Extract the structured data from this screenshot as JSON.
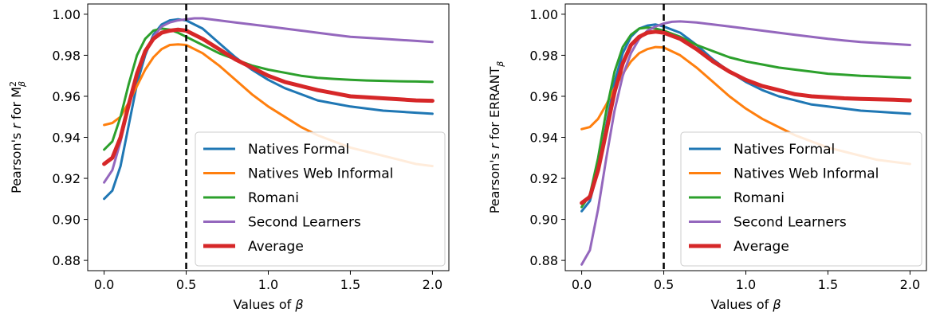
{
  "colors": {
    "natives_formal": "#1f77b4",
    "natives_web_informal": "#ff7f0e",
    "romani": "#2ca02c",
    "second_learners": "#9467bd",
    "average": "#d62728"
  },
  "chart_data": [
    {
      "type": "line",
      "xlabel": "Values of β",
      "ylabel": "Pearson's r for M²β",
      "ylabel_parts": {
        "prefix": "Pearson's ",
        "r": "r",
        "mid": " for M",
        "sup": "2",
        "sub": "β"
      },
      "xlim": [
        -0.1,
        2.1
      ],
      "ylim": [
        0.875,
        1.005
      ],
      "xticks": [
        0.0,
        0.5,
        1.0,
        1.5,
        2.0
      ],
      "xtick_labels": [
        "0.0",
        "0.5",
        "1.0",
        "1.5",
        "2.0"
      ],
      "yticks": [
        0.88,
        0.9,
        0.92,
        0.94,
        0.96,
        0.98,
        1.0
      ],
      "ytick_labels": [
        "0.88",
        "0.90",
        "0.92",
        "0.94",
        "0.96",
        "0.98",
        "1.00"
      ],
      "vline": {
        "x": 0.5,
        "style": "dashed"
      },
      "legend": "lower-right",
      "series": [
        {
          "name": "Natives Formal",
          "color_key": "natives_formal",
          "x": [
            0,
            0.05,
            0.1,
            0.15,
            0.2,
            0.25,
            0.3,
            0.35,
            0.4,
            0.45,
            0.5,
            0.6,
            0.7,
            0.8,
            0.9,
            1.0,
            1.1,
            1.2,
            1.3,
            1.4,
            1.5,
            1.6,
            1.7,
            1.8,
            1.9,
            2.0
          ],
          "y": [
            0.91,
            0.914,
            0.926,
            0.946,
            0.966,
            0.98,
            0.99,
            0.995,
            0.997,
            0.9975,
            0.997,
            0.993,
            0.986,
            0.979,
            0.973,
            0.968,
            0.964,
            0.961,
            0.958,
            0.9565,
            0.955,
            0.954,
            0.953,
            0.9525,
            0.952,
            0.9515
          ]
        },
        {
          "name": "Natives Web Informal",
          "color_key": "natives_web_informal",
          "x": [
            0,
            0.05,
            0.1,
            0.15,
            0.2,
            0.25,
            0.3,
            0.35,
            0.4,
            0.45,
            0.5,
            0.6,
            0.7,
            0.8,
            0.9,
            1.0,
            1.1,
            1.2,
            1.3,
            1.4,
            1.5,
            1.6,
            1.7,
            1.8,
            1.9,
            2.0
          ],
          "y": [
            0.946,
            0.947,
            0.95,
            0.957,
            0.965,
            0.973,
            0.979,
            0.983,
            0.985,
            0.9853,
            0.985,
            0.981,
            0.975,
            0.968,
            0.961,
            0.955,
            0.95,
            0.945,
            0.941,
            0.938,
            0.935,
            0.933,
            0.931,
            0.929,
            0.927,
            0.926
          ]
        },
        {
          "name": "Romani",
          "color_key": "romani",
          "x": [
            0,
            0.05,
            0.1,
            0.15,
            0.2,
            0.25,
            0.3,
            0.35,
            0.4,
            0.45,
            0.5,
            0.6,
            0.7,
            0.8,
            0.9,
            1.0,
            1.1,
            1.2,
            1.3,
            1.4,
            1.5,
            1.6,
            1.7,
            1.8,
            1.9,
            2.0
          ],
          "y": [
            0.934,
            0.938,
            0.95,
            0.966,
            0.98,
            0.988,
            0.992,
            0.993,
            0.9925,
            0.991,
            0.989,
            0.985,
            0.981,
            0.978,
            0.975,
            0.973,
            0.9715,
            0.97,
            0.969,
            0.9685,
            0.968,
            0.9677,
            0.9675,
            0.9673,
            0.9672,
            0.967
          ]
        },
        {
          "name": "Second Learners",
          "color_key": "second_learners",
          "x": [
            0,
            0.05,
            0.1,
            0.15,
            0.2,
            0.25,
            0.3,
            0.35,
            0.4,
            0.45,
            0.5,
            0.55,
            0.6,
            0.7,
            0.8,
            0.9,
            1.0,
            1.1,
            1.2,
            1.3,
            1.4,
            1.5,
            1.6,
            1.7,
            1.8,
            1.9,
            2.0
          ],
          "y": [
            0.918,
            0.924,
            0.938,
            0.955,
            0.97,
            0.981,
            0.989,
            0.994,
            0.996,
            0.997,
            0.9975,
            0.998,
            0.998,
            0.997,
            0.996,
            0.995,
            0.994,
            0.993,
            0.992,
            0.991,
            0.99,
            0.989,
            0.9885,
            0.988,
            0.9875,
            0.987,
            0.9865
          ]
        },
        {
          "name": "Average",
          "color_key": "average",
          "x": [
            0,
            0.05,
            0.1,
            0.15,
            0.2,
            0.25,
            0.3,
            0.35,
            0.4,
            0.45,
            0.5,
            0.6,
            0.7,
            0.8,
            0.9,
            1.0,
            1.1,
            1.2,
            1.3,
            1.4,
            1.5,
            1.6,
            1.7,
            1.8,
            1.9,
            2.0
          ],
          "y": [
            0.927,
            0.93,
            0.94,
            0.956,
            0.971,
            0.982,
            0.988,
            0.991,
            0.992,
            0.9925,
            0.992,
            0.988,
            0.983,
            0.978,
            0.974,
            0.97,
            0.967,
            0.965,
            0.963,
            0.9615,
            0.96,
            0.9595,
            0.959,
            0.9585,
            0.958,
            0.9578
          ]
        }
      ]
    },
    {
      "type": "line",
      "xlabel": "Values of β",
      "ylabel": "Pearson's r for ERRANTβ",
      "ylabel_parts": {
        "prefix": "Pearson's ",
        "r": "r",
        "mid": " for ERRANT",
        "sup": "",
        "sub": "β"
      },
      "xlim": [
        -0.1,
        2.1
      ],
      "ylim": [
        0.875,
        1.005
      ],
      "xticks": [
        0.0,
        0.5,
        1.0,
        1.5,
        2.0
      ],
      "xtick_labels": [
        "0.0",
        "0.5",
        "1.0",
        "1.5",
        "2.0"
      ],
      "yticks": [
        0.88,
        0.9,
        0.92,
        0.94,
        0.96,
        0.98,
        1.0
      ],
      "ytick_labels": [
        "0.88",
        "0.90",
        "0.92",
        "0.94",
        "0.96",
        "0.98",
        "1.00"
      ],
      "vline": {
        "x": 0.5,
        "style": "dashed"
      },
      "legend": "lower-right",
      "series": [
        {
          "name": "Natives Formal",
          "color_key": "natives_formal",
          "x": [
            0,
            0.05,
            0.1,
            0.15,
            0.2,
            0.25,
            0.3,
            0.35,
            0.4,
            0.45,
            0.5,
            0.6,
            0.7,
            0.8,
            0.9,
            1.0,
            1.1,
            1.2,
            1.3,
            1.4,
            1.5,
            1.6,
            1.7,
            1.8,
            1.9,
            2.0
          ],
          "y": [
            0.904,
            0.909,
            0.924,
            0.946,
            0.967,
            0.981,
            0.989,
            0.993,
            0.9945,
            0.995,
            0.994,
            0.991,
            0.985,
            0.978,
            0.972,
            0.967,
            0.963,
            0.96,
            0.958,
            0.956,
            0.955,
            0.954,
            0.953,
            0.9525,
            0.952,
            0.9515
          ]
        },
        {
          "name": "Natives Web Informal",
          "color_key": "natives_web_informal",
          "x": [
            0,
            0.05,
            0.1,
            0.15,
            0.2,
            0.25,
            0.3,
            0.35,
            0.4,
            0.45,
            0.5,
            0.6,
            0.7,
            0.8,
            0.9,
            1.0,
            1.1,
            1.2,
            1.3,
            1.4,
            1.5,
            1.6,
            1.7,
            1.8,
            1.9,
            2.0
          ],
          "y": [
            0.944,
            0.945,
            0.949,
            0.956,
            0.964,
            0.971,
            0.977,
            0.981,
            0.983,
            0.984,
            0.9838,
            0.98,
            0.974,
            0.967,
            0.96,
            0.954,
            0.949,
            0.945,
            0.941,
            0.938,
            0.935,
            0.933,
            0.931,
            0.929,
            0.928,
            0.927
          ]
        },
        {
          "name": "Romani",
          "color_key": "romani",
          "x": [
            0,
            0.05,
            0.1,
            0.15,
            0.2,
            0.25,
            0.3,
            0.35,
            0.4,
            0.45,
            0.5,
            0.6,
            0.7,
            0.8,
            0.9,
            1.0,
            1.1,
            1.2,
            1.3,
            1.4,
            1.5,
            1.6,
            1.7,
            1.8,
            1.9,
            2.0
          ],
          "y": [
            0.906,
            0.912,
            0.93,
            0.953,
            0.972,
            0.984,
            0.99,
            0.993,
            0.9935,
            0.993,
            0.992,
            0.989,
            0.985,
            0.982,
            0.979,
            0.977,
            0.9755,
            0.974,
            0.973,
            0.972,
            0.971,
            0.9705,
            0.97,
            0.9697,
            0.9693,
            0.969
          ]
        },
        {
          "name": "Second Learners",
          "color_key": "second_learners",
          "x": [
            0,
            0.05,
            0.1,
            0.15,
            0.2,
            0.25,
            0.3,
            0.35,
            0.4,
            0.45,
            0.5,
            0.55,
            0.6,
            0.7,
            0.8,
            0.9,
            1.0,
            1.1,
            1.2,
            1.3,
            1.4,
            1.5,
            1.6,
            1.7,
            1.8,
            1.9,
            2.0
          ],
          "y": [
            0.878,
            0.885,
            0.905,
            0.93,
            0.953,
            0.97,
            0.981,
            0.988,
            0.992,
            0.994,
            0.9955,
            0.9963,
            0.9965,
            0.996,
            0.995,
            0.994,
            0.993,
            0.992,
            0.991,
            0.99,
            0.989,
            0.988,
            0.9872,
            0.9865,
            0.986,
            0.9855,
            0.985
          ]
        },
        {
          "name": "Average",
          "color_key": "average",
          "x": [
            0,
            0.05,
            0.1,
            0.15,
            0.2,
            0.25,
            0.3,
            0.35,
            0.4,
            0.45,
            0.5,
            0.6,
            0.7,
            0.8,
            0.9,
            1.0,
            1.1,
            1.2,
            1.3,
            1.4,
            1.5,
            1.6,
            1.7,
            1.8,
            1.9,
            2.0
          ],
          "y": [
            0.908,
            0.911,
            0.924,
            0.943,
            0.962,
            0.976,
            0.985,
            0.989,
            0.991,
            0.9915,
            0.991,
            0.988,
            0.983,
            0.977,
            0.972,
            0.968,
            0.965,
            0.963,
            0.961,
            0.96,
            0.9595,
            0.959,
            0.9587,
            0.9585,
            0.9583,
            0.958
          ]
        }
      ]
    }
  ]
}
